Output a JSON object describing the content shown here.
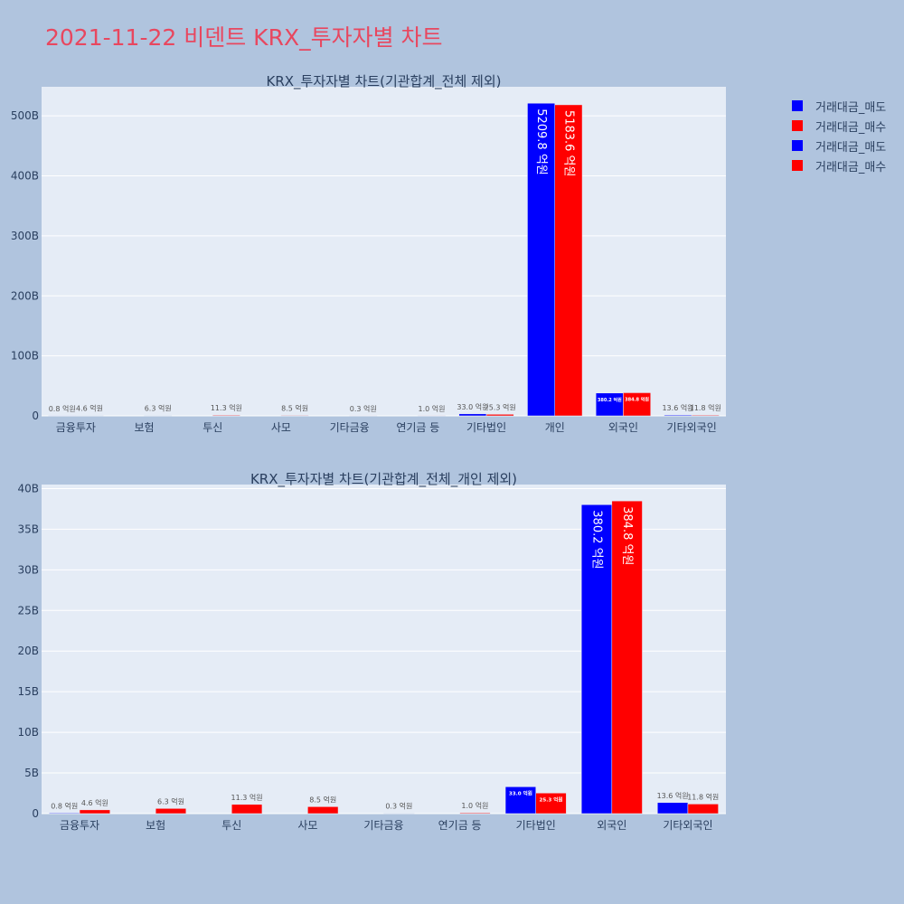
{
  "title": "2021-11-22 비덴트 KRX_투자자별 차트",
  "colors": {
    "sell": "#0000ff",
    "buy": "#ff0000",
    "plot_bg": "#e5ecf6",
    "page_bg": "#b0c4de",
    "text": "#2a3f5f",
    "title": "#e8475f"
  },
  "legend": [
    {
      "label": "거래대금_매도",
      "color": "#0000ff"
    },
    {
      "label": "거래대금_매수",
      "color": "#ff0000"
    },
    {
      "label": "거래대금_매도",
      "color": "#0000ff"
    },
    {
      "label": "거래대금_매수",
      "color": "#ff0000"
    }
  ],
  "chart_data": [
    {
      "type": "bar",
      "title": "KRX_투자자별 차트(기관합계_전체 제외)",
      "categories": [
        "금융투자",
        "보험",
        "투신",
        "사모",
        "기타금융",
        "연기금 등",
        "기타법인",
        "개인",
        "외국인",
        "기타외국인"
      ],
      "series": [
        {
          "name": "거래대금_매도",
          "values": [
            0.08,
            0,
            0,
            0,
            0,
            0,
            3.3,
            520.98,
            38.02,
            1.36
          ],
          "labels": [
            "0.8 억원",
            "",
            "",
            "",
            "",
            "",
            "33.0 억원",
            "5209.8 억원",
            "380.2 억원",
            "13.6 억원"
          ]
        },
        {
          "name": "거래대금_매수",
          "values": [
            0.46,
            0.63,
            1.13,
            0.85,
            0.03,
            0.1,
            2.53,
            518.36,
            38.48,
            1.18
          ],
          "labels": [
            "4.6 억원",
            "6.3 억원",
            "11.3 억원",
            "8.5 억원",
            "0.3 억원",
            "1.0 억원",
            "25.3 억원",
            "5183.6 억원",
            "384.8 억원",
            "11.8 억원"
          ]
        }
      ],
      "yticks": [
        0,
        100,
        200,
        300,
        400,
        500
      ],
      "ytick_labels": [
        "0",
        "100B",
        "200B",
        "300B",
        "400B",
        "500B"
      ],
      "ylim": [
        0,
        548.4
      ],
      "grid": true
    },
    {
      "type": "bar",
      "title": "KRX_투자자별 차트(기관합계_전체_개인 제외)",
      "categories": [
        "금융투자",
        "보험",
        "투신",
        "사모",
        "기타금융",
        "연기금 등",
        "기타법인",
        "외국인",
        "기타외국인"
      ],
      "series": [
        {
          "name": "거래대금_매도",
          "values": [
            0.08,
            0,
            0,
            0,
            0,
            0,
            3.3,
            38.02,
            1.36
          ],
          "labels": [
            "0.8 억원",
            "",
            "",
            "",
            "",
            "",
            "33.0 억원",
            "380.2 억원",
            "13.6 억원"
          ]
        },
        {
          "name": "거래대금_매수",
          "values": [
            0.46,
            0.63,
            1.13,
            0.85,
            0.03,
            0.1,
            2.53,
            38.48,
            1.18
          ],
          "labels": [
            "4.6 억원",
            "6.3 억원",
            "11.3 억원",
            "8.5 억원",
            "0.3 억원",
            "1.0 억원",
            "25.3 억원",
            "384.8 억원",
            "11.8 억원"
          ]
        }
      ],
      "yticks": [
        0,
        5,
        10,
        15,
        20,
        25,
        30,
        35,
        40
      ],
      "ytick_labels": [
        "0",
        "5B",
        "10B",
        "15B",
        "20B",
        "25B",
        "30B",
        "35B",
        "40B"
      ],
      "ylim": [
        0,
        40.5
      ],
      "grid": true
    }
  ]
}
